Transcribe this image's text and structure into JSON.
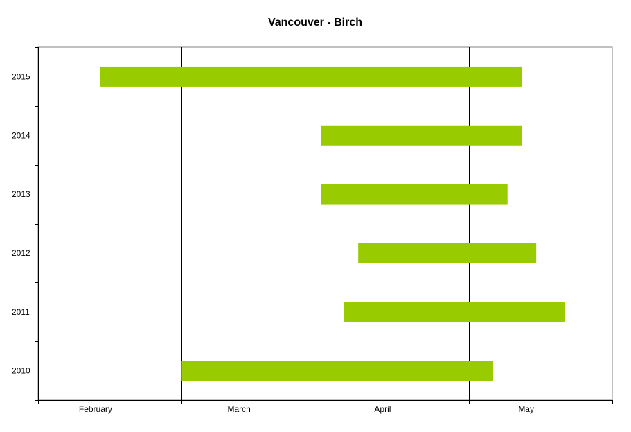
{
  "chart_data": {
    "type": "bar",
    "orientation": "horizontal-range",
    "title": "Vancouver - Birch",
    "xlabel": "",
    "ylabel": "",
    "x_axis": {
      "unit": "month",
      "ticks": [
        "February",
        "March",
        "April",
        "May"
      ],
      "range": [
        1,
        5
      ]
    },
    "categories": [
      "2015",
      "2014",
      "2013",
      "2012",
      "2011",
      "2010"
    ],
    "series": [
      {
        "color": "#99cc00",
        "ranges": [
          {
            "category": "2015",
            "start": 1.43,
            "end": 4.37
          },
          {
            "category": "2014",
            "start": 2.97,
            "end": 4.37
          },
          {
            "category": "2013",
            "start": 2.97,
            "end": 4.27
          },
          {
            "category": "2012",
            "start": 3.23,
            "end": 4.47
          },
          {
            "category": "2011",
            "start": 3.13,
            "end": 4.67
          },
          {
            "category": "2010",
            "start": 2.0,
            "end": 4.17
          }
        ]
      }
    ],
    "grid": {
      "x_major": true,
      "y_major": false
    },
    "legend": "none"
  }
}
